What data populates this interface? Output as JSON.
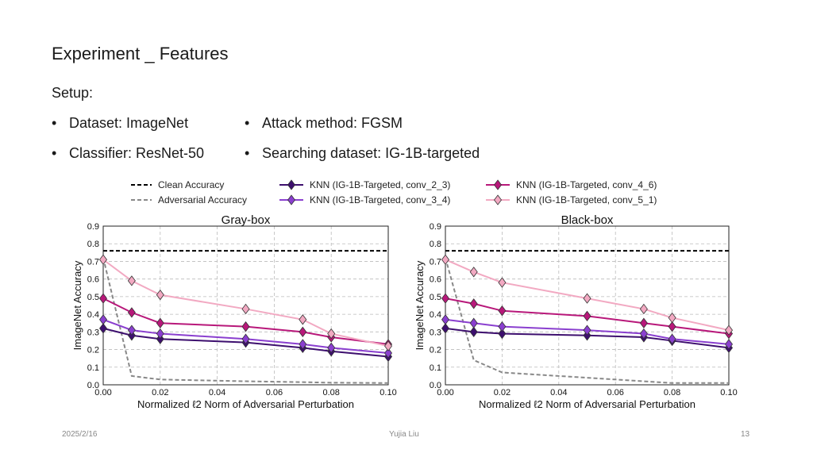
{
  "slide": {
    "title": "Experiment _ Features",
    "setup_label": "Setup:",
    "bullets": [
      "Dataset: ImageNet",
      "Attack method: FGSM",
      "Classifier: ResNet-50",
      "Searching dataset: IG-1B-targeted"
    ]
  },
  "footer": {
    "date": "2025/2/16",
    "author": "Yujia Liu",
    "page": "13"
  },
  "legend": [
    {
      "label": "Clean Accuracy",
      "color": "#000000",
      "style": "dashed"
    },
    {
      "label": "Adversarial Accuracy",
      "color": "#888888",
      "style": "dashed"
    },
    {
      "label": "KNN (IG-1B-Targeted, conv_2_3)",
      "color": "#3d0f6e",
      "style": "marker"
    },
    {
      "label": "KNN (IG-1B-Targeted, conv_3_4)",
      "color": "#8a3fcf",
      "style": "marker"
    },
    {
      "label": "KNN (IG-1B-Targeted, conv_4_6)",
      "color": "#b8187a",
      "style": "marker"
    },
    {
      "label": "KNN (IG-1B-Targeted, conv_5_1)",
      "color": "#f2a9c2",
      "style": "marker"
    }
  ],
  "chart_data": [
    {
      "type": "line",
      "title": "Gray-box",
      "xlabel": "Normalized ℓ2 Norm of Adversarial Perturbation",
      "ylabel": "ImageNet Accuracy",
      "xlim": [
        0,
        0.1
      ],
      "ylim": [
        0,
        0.9
      ],
      "xticks": [
        "0.00",
        "0.02",
        "0.04",
        "0.06",
        "0.08",
        "0.10"
      ],
      "yticks": [
        "0.0",
        "0.1",
        "0.2",
        "0.3",
        "0.4",
        "0.5",
        "0.6",
        "0.7",
        "0.8",
        "0.9"
      ],
      "grid": true,
      "x": [
        0,
        0.01,
        0.02,
        0.05,
        0.07,
        0.08,
        0.1
      ],
      "clean_accuracy": 0.76,
      "adversarial_accuracy": [
        0.72,
        0.05,
        0.03,
        0.02,
        0.015,
        0.012,
        0.01
      ],
      "series": [
        {
          "name": "KNN (IG-1B-Targeted, conv_2_3)",
          "values": [
            0.32,
            0.28,
            0.26,
            0.24,
            0.21,
            0.19,
            0.16
          ]
        },
        {
          "name": "KNN (IG-1B-Targeted, conv_3_4)",
          "values": [
            0.37,
            0.31,
            0.29,
            0.26,
            0.23,
            0.21,
            0.18
          ]
        },
        {
          "name": "KNN (IG-1B-Targeted, conv_4_6)",
          "values": [
            0.49,
            0.41,
            0.35,
            0.33,
            0.3,
            0.27,
            0.23
          ]
        },
        {
          "name": "KNN (IG-1B-Targeted, conv_5_1)",
          "values": [
            0.71,
            0.59,
            0.51,
            0.43,
            0.37,
            0.29,
            0.22
          ]
        }
      ]
    },
    {
      "type": "line",
      "title": "Black-box",
      "xlabel": "Normalized ℓ2 Norm of Adversarial Perturbation",
      "ylabel": "ImageNet Accuracy",
      "xlim": [
        0,
        0.1
      ],
      "ylim": [
        0,
        0.9
      ],
      "xticks": [
        "0.00",
        "0.02",
        "0.04",
        "0.06",
        "0.08",
        "0.10"
      ],
      "yticks": [
        "0.0",
        "0.1",
        "0.2",
        "0.3",
        "0.4",
        "0.5",
        "0.6",
        "0.7",
        "0.8",
        "0.9"
      ],
      "grid": true,
      "x": [
        0,
        0.01,
        0.02,
        0.05,
        0.07,
        0.08,
        0.1
      ],
      "clean_accuracy": 0.76,
      "adversarial_accuracy": [
        0.72,
        0.14,
        0.07,
        0.04,
        0.02,
        0.01,
        0.01
      ],
      "series": [
        {
          "name": "KNN (IG-1B-Targeted, conv_2_3)",
          "values": [
            0.32,
            0.3,
            0.29,
            0.28,
            0.27,
            0.25,
            0.21
          ]
        },
        {
          "name": "KNN (IG-1B-Targeted, conv_3_4)",
          "values": [
            0.37,
            0.35,
            0.33,
            0.31,
            0.29,
            0.26,
            0.23
          ]
        },
        {
          "name": "KNN (IG-1B-Targeted, conv_4_6)",
          "values": [
            0.49,
            0.46,
            0.42,
            0.39,
            0.35,
            0.33,
            0.29
          ]
        },
        {
          "name": "KNN (IG-1B-Targeted, conv_5_1)",
          "values": [
            0.71,
            0.64,
            0.58,
            0.49,
            0.43,
            0.38,
            0.31
          ]
        }
      ]
    }
  ]
}
